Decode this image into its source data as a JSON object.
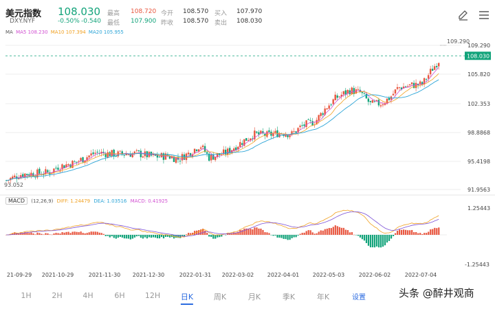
{
  "header": {
    "title": "美元指数",
    "symbol": "DXY.NYF",
    "price": "108.030",
    "change_pct": "-0.50%",
    "change_abs": "-0.540",
    "quotes": [
      {
        "label": "最高",
        "value": "108.720",
        "color": "#e8563f"
      },
      {
        "label": "今开",
        "value": "108.570",
        "color": "#333333"
      },
      {
        "label": "买入",
        "value": "107.970",
        "color": "#333333"
      },
      {
        "label": "最低",
        "value": "107.900",
        "color": "#12a37a"
      },
      {
        "label": "昨收",
        "value": "108.570",
        "color": "#333333"
      },
      {
        "label": "卖出",
        "value": "108.030",
        "color": "#333333"
      }
    ],
    "icons": {
      "edit": "pencil-icon",
      "menu": "menu-icon"
    }
  },
  "ma_legend": {
    "label": "MA",
    "ma5": "MA5 108.230",
    "ma10": "MA10 107.394",
    "ma20": "MA20 105.955",
    "colors": {
      "ma5": "#d14fd1",
      "ma10": "#f0a020",
      "ma20": "#29a3d6"
    }
  },
  "macd_legend": {
    "button": "MACD",
    "params": "(12,26,9)",
    "diff": "DIFF: 1.24479",
    "dea": "DEA: 1.03516",
    "macd": "MACD: 0.41925"
  },
  "chart_data": {
    "type": "candlestick",
    "axis_labels": [
      "109.290",
      "105.820",
      "102.353",
      "98.8868",
      "95.4198",
      "91.9563"
    ],
    "last_price": "108.030",
    "high_marker": "109.290",
    "low_marker": "93.052",
    "ylim": [
      91.9563,
      109.9
    ],
    "macd_axis": [
      "1.25443",
      "-1.25443"
    ],
    "x_dates": [
      "21-09-29",
      "2021-10-29",
      "2021-11-30",
      "2021-12-30",
      "2022-01-31",
      "2022-03-02",
      "2022-04-01",
      "2022-05-03",
      "2022-06-02",
      "2022-07-04"
    ],
    "trend": [
      [
        0,
        93.05
      ],
      [
        22,
        93.8
      ],
      [
        42,
        93.9
      ],
      [
        62,
        94.0
      ],
      [
        75,
        94.7
      ],
      [
        100,
        95.2
      ],
      [
        130,
        96.4
      ],
      [
        160,
        96.2
      ],
      [
        190,
        96.3
      ],
      [
        215,
        95.9
      ],
      [
        235,
        96.0
      ],
      [
        250,
        95.6
      ],
      [
        265,
        96.3
      ],
      [
        282,
        97.3
      ],
      [
        295,
        95.8
      ],
      [
        320,
        96.4
      ],
      [
        345,
        97.8
      ],
      [
        360,
        98.6
      ],
      [
        380,
        98.5
      ],
      [
        400,
        98.8
      ],
      [
        415,
        98.6
      ],
      [
        430,
        99.6
      ],
      [
        450,
        100.2
      ],
      [
        465,
        101.8
      ],
      [
        480,
        103.0
      ],
      [
        500,
        103.9
      ],
      [
        515,
        103.6
      ],
      [
        530,
        102.2
      ],
      [
        545,
        102.3
      ],
      [
        558,
        103.0
      ],
      [
        570,
        104.2
      ],
      [
        590,
        104.5
      ],
      [
        605,
        104.6
      ],
      [
        620,
        106.5
      ],
      [
        633,
        107.9
      ],
      [
        640,
        108.4
      ]
    ]
  },
  "tabs": [
    {
      "label": "1H"
    },
    {
      "label": "2H"
    },
    {
      "label": "4H"
    },
    {
      "label": "6H"
    },
    {
      "label": "12H"
    },
    {
      "label": "日K",
      "active": true
    },
    {
      "label": "周K"
    },
    {
      "label": "月K"
    },
    {
      "label": "季K"
    },
    {
      "label": "年K"
    }
  ],
  "settings_label": "设置",
  "watermark": "头条 @醉井观商"
}
